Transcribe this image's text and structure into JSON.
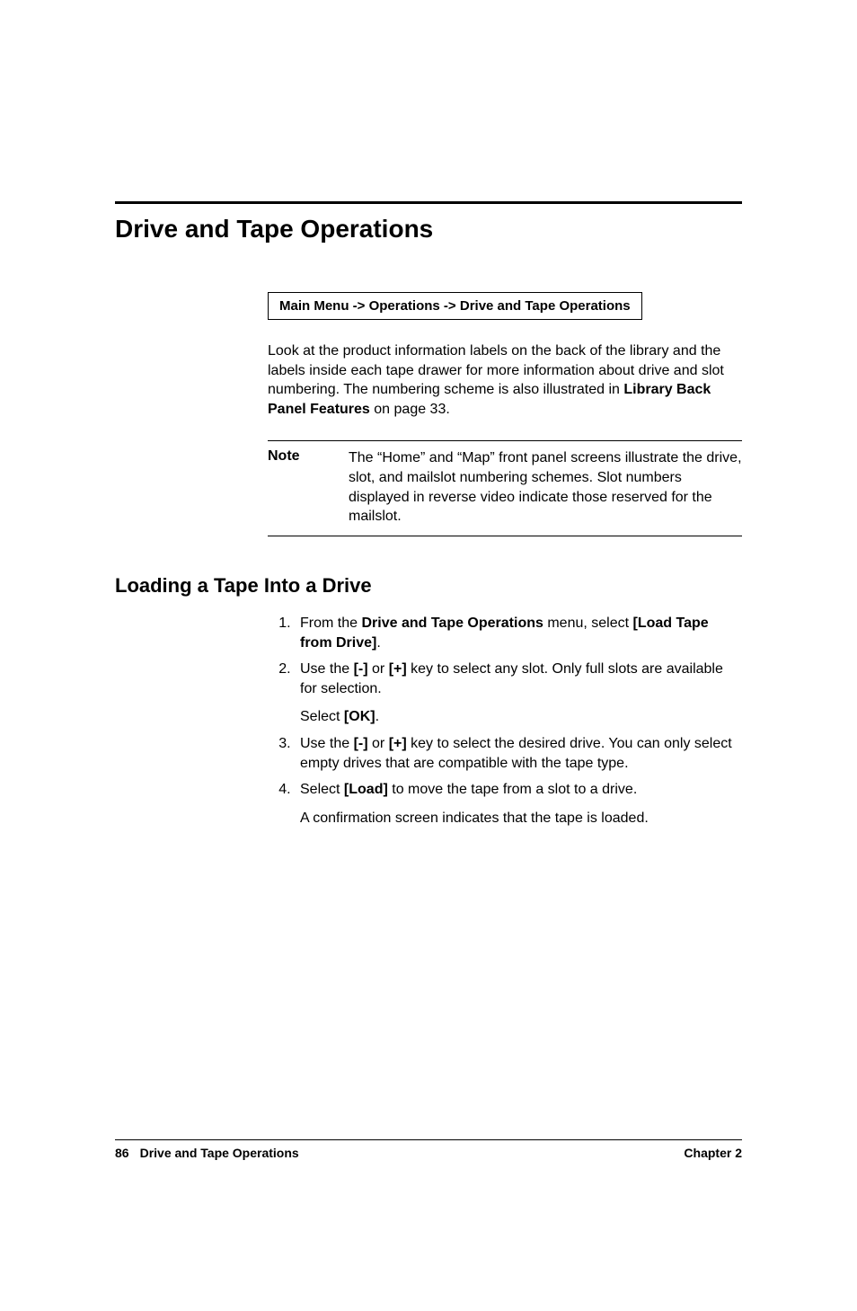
{
  "heading1": "Drive and Tape Operations",
  "navPath": "Main Menu -> Operations -> Drive and Tape Operations",
  "intro": {
    "pre": "Look at the product information labels on the back of the library and the labels inside each tape drawer for more information about drive and slot numbering. The numbering scheme is also illustrated in ",
    "linkText": "Library Back Panel Features",
    "post": " on page 33."
  },
  "note": {
    "label": "Note",
    "text": "The “Home” and “Map” front panel screens illustrate the drive, slot, and mailslot numbering schemes. Slot numbers displayed in reverse video indicate those reserved for the mailslot."
  },
  "heading2": "Loading a Tape Into a Drive",
  "steps": {
    "s1_pre": "From the ",
    "s1_b1": "Drive and Tape Operations",
    "s1_mid": " menu, select ",
    "s1_b2": "[Load Tape from Drive]",
    "s1_post": ".",
    "s2_pre": "Use the ",
    "s2_b1": "[-]",
    "s2_mid1": " or ",
    "s2_b2": "[+]",
    "s2_post": " key to select any slot. Only full slots are available for selection.",
    "s2_sub_pre": "Select ",
    "s2_sub_b": "[OK]",
    "s2_sub_post": ".",
    "s3_pre": "Use the ",
    "s3_b1": "[-]",
    "s3_mid1": " or ",
    "s3_b2": "[+]",
    "s3_post": " key to select the desired drive. You can only select empty drives that are compatible with the tape type.",
    "s4_pre": "Select ",
    "s4_b1": "[Load]",
    "s4_post": " to move the tape from a slot to a drive.",
    "s4_sub": "A confirmation screen indicates that the tape is loaded."
  },
  "footer": {
    "pageNum": "86",
    "sectionTitle": "Drive and Tape Operations",
    "chapter": "Chapter 2"
  },
  "colors": {
    "text": "#000000",
    "background": "#ffffff",
    "rule": "#000000"
  },
  "fontsizes": {
    "h1": 28,
    "h2": 22,
    "body": 16,
    "footer": 14,
    "navbox": 15
  }
}
